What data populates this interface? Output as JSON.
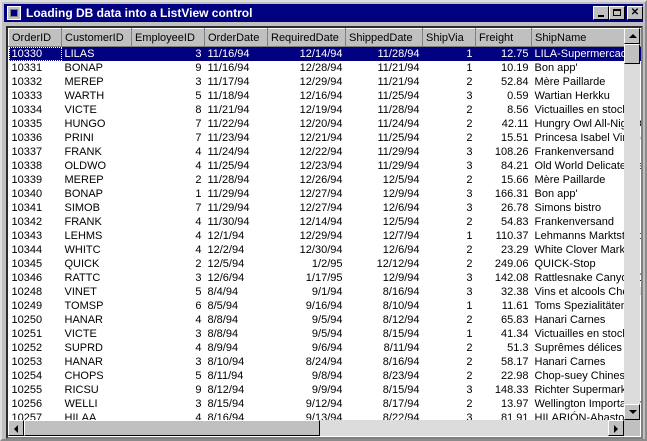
{
  "window": {
    "title": "Loading DB data into a ListView control"
  },
  "title_buttons": {
    "min": "minimize",
    "max": "maximize",
    "close": "✕"
  },
  "listview": {
    "columns": [
      "OrderID",
      "CustomerID",
      "EmployeeID",
      "OrderDate",
      "RequiredDate",
      "ShippedDate",
      "ShipVia",
      "Freight",
      "ShipName"
    ],
    "rows": [
      [
        "10330",
        "LILAS",
        "3",
        "11/16/94",
        "12/14/94",
        "11/28/94",
        "1",
        "12.75",
        "LILA-Supermercado"
      ],
      [
        "10331",
        "BONAP",
        "9",
        "11/16/94",
        "12/28/94",
        "11/21/94",
        "1",
        "10.19",
        "Bon app'"
      ],
      [
        "10332",
        "MEREP",
        "3",
        "11/17/94",
        "12/29/94",
        "11/21/94",
        "2",
        "52.84",
        "Mère Paillarde"
      ],
      [
        "10333",
        "WARTH",
        "5",
        "11/18/94",
        "12/16/94",
        "11/25/94",
        "3",
        "0.59",
        "Wartian Herkku"
      ],
      [
        "10334",
        "VICTE",
        "8",
        "11/21/94",
        "12/19/94",
        "11/28/94",
        "2",
        "8.56",
        "Victuailles en stock"
      ],
      [
        "10335",
        "HUNGO",
        "7",
        "11/22/94",
        "12/20/94",
        "11/24/94",
        "2",
        "42.11",
        "Hungry Owl All-Night Grocers"
      ],
      [
        "10336",
        "PRINI",
        "7",
        "11/23/94",
        "12/21/94",
        "11/25/94",
        "2",
        "15.51",
        "Princesa Isabel Vinhos"
      ],
      [
        "10337",
        "FRANK",
        "4",
        "11/24/94",
        "12/22/94",
        "11/29/94",
        "3",
        "108.26",
        "Frankenversand"
      ],
      [
        "10338",
        "OLDWO",
        "4",
        "11/25/94",
        "12/23/94",
        "11/29/94",
        "3",
        "84.21",
        "Old World Delicatessen"
      ],
      [
        "10339",
        "MEREP",
        "2",
        "11/28/94",
        "12/26/94",
        "12/5/94",
        "2",
        "15.66",
        "Mère Paillarde"
      ],
      [
        "10340",
        "BONAP",
        "1",
        "11/29/94",
        "12/27/94",
        "12/9/94",
        "3",
        "166.31",
        "Bon app'"
      ],
      [
        "10341",
        "SIMOB",
        "7",
        "11/29/94",
        "12/27/94",
        "12/6/94",
        "3",
        "26.78",
        "Simons bistro"
      ],
      [
        "10342",
        "FRANK",
        "4",
        "11/30/94",
        "12/14/94",
        "12/5/94",
        "2",
        "54.83",
        "Frankenversand"
      ],
      [
        "10343",
        "LEHMS",
        "4",
        "12/1/94",
        "12/29/94",
        "12/7/94",
        "1",
        "110.37",
        "Lehmanns Marktstand"
      ],
      [
        "10344",
        "WHITC",
        "4",
        "12/2/94",
        "12/30/94",
        "12/6/94",
        "2",
        "23.29",
        "White Clover Markets"
      ],
      [
        "10345",
        "QUICK",
        "2",
        "12/5/94",
        "1/2/95",
        "12/12/94",
        "2",
        "249.06",
        "QUICK-Stop"
      ],
      [
        "10346",
        "RATTC",
        "3",
        "12/6/94",
        "1/17/95",
        "12/9/94",
        "3",
        "142.08",
        "Rattlesnake Canyon Grocery"
      ],
      [
        "10248",
        "VINET",
        "5",
        "8/4/94",
        "9/1/94",
        "8/16/94",
        "3",
        "32.38",
        "Vins et alcools Chevalier"
      ],
      [
        "10249",
        "TOMSP",
        "6",
        "8/5/94",
        "9/16/94",
        "8/10/94",
        "1",
        "11.61",
        "Toms Spezialitäten"
      ],
      [
        "10250",
        "HANAR",
        "4",
        "8/8/94",
        "9/5/94",
        "8/12/94",
        "2",
        "65.83",
        "Hanari Carnes"
      ],
      [
        "10251",
        "VICTE",
        "3",
        "8/8/94",
        "9/5/94",
        "8/15/94",
        "1",
        "41.34",
        "Victuailles en stock"
      ],
      [
        "10252",
        "SUPRD",
        "4",
        "8/9/94",
        "9/6/94",
        "8/11/94",
        "2",
        "51.3",
        "Suprêmes délices"
      ],
      [
        "10253",
        "HANAR",
        "3",
        "8/10/94",
        "8/24/94",
        "8/16/94",
        "2",
        "58.17",
        "Hanari Carnes"
      ],
      [
        "10254",
        "CHOPS",
        "5",
        "8/11/94",
        "9/8/94",
        "8/23/94",
        "2",
        "22.98",
        "Chop-suey Chinese"
      ],
      [
        "10255",
        "RICSU",
        "9",
        "8/12/94",
        "9/9/94",
        "8/15/94",
        "3",
        "148.33",
        "Richter Supermarkt"
      ],
      [
        "10256",
        "WELLI",
        "3",
        "8/15/94",
        "9/12/94",
        "8/17/94",
        "2",
        "13.97",
        "Wellington Importadora"
      ],
      [
        "10257",
        "HILAA",
        "4",
        "8/16/94",
        "9/13/94",
        "8/22/94",
        "3",
        "81.91",
        "HILARIÓN-Abastos"
      ]
    ]
  }
}
